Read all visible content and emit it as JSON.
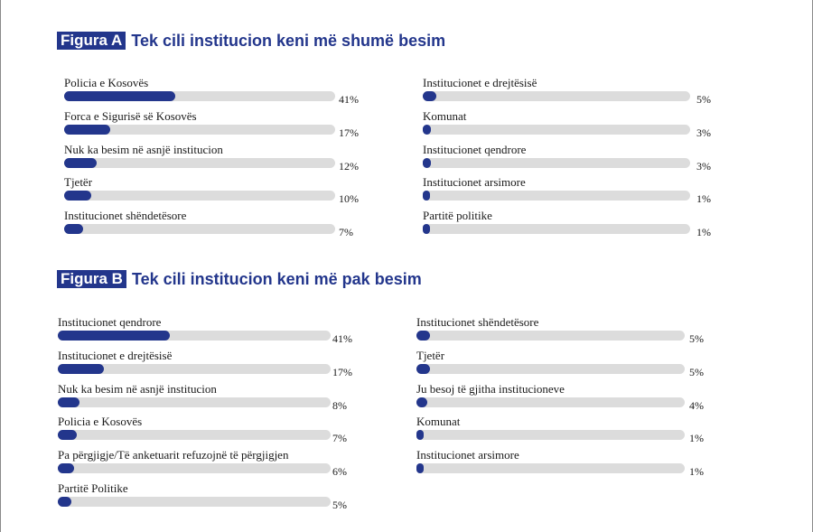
{
  "chart_data": [
    {
      "type": "bar",
      "tag": "Figura A",
      "title": "Tek cili institucion keni më shumë besim",
      "series": [
        {
          "values": [
            41,
            17,
            12,
            10,
            7,
            5,
            3,
            3,
            1,
            1
          ]
        }
      ],
      "categories": [
        "Policia e Kosovës",
        "Forca e Sigurisë së Kosovës",
        "Nuk ka besim në asnjë institucion",
        "Tjetër",
        "Institucionet shëndetësore",
        "Institucionet e drejtësisë",
        "Komunat",
        "Institucionet qendrore",
        "Institucionet arsimore",
        "Partitë politike"
      ],
      "value_labels": [
        "41%",
        "17%",
        "12%",
        "10%",
        "7%",
        "5%",
        "3%",
        "3%",
        "1%",
        "1%"
      ],
      "xlim": [
        0,
        100
      ],
      "colors": {
        "bar": "#23368c",
        "track": "#dcdcdc"
      }
    },
    {
      "type": "bar",
      "tag": "Figura B",
      "title": "Tek cili institucion keni më pak besim",
      "series": [
        {
          "values": [
            41,
            17,
            8,
            7,
            6,
            5,
            5,
            5,
            4,
            1,
            1
          ]
        }
      ],
      "categories": [
        "Institucionet qendrore",
        "Institucionet e drejtësisë",
        "Nuk ka besim në asnjë institucion",
        "Policia e Kosovës",
        "Pa përgjigje/Të anketuarit refuzojnë të përgjigjen",
        "Partitë Politike",
        "Institucionet shëndetësore",
        "Tjetër",
        "Ju besoj të gjitha institucioneve",
        "Komunat",
        "Institucionet arsimore"
      ],
      "value_labels": [
        "41%",
        "17%",
        "8%",
        "7%",
        "6%",
        "5%",
        "5%",
        "5%",
        "4%",
        "1%",
        "1%"
      ],
      "xlim": [
        0,
        100
      ],
      "colors": {
        "bar": "#23368c",
        "track": "#dcdcdc"
      }
    }
  ]
}
